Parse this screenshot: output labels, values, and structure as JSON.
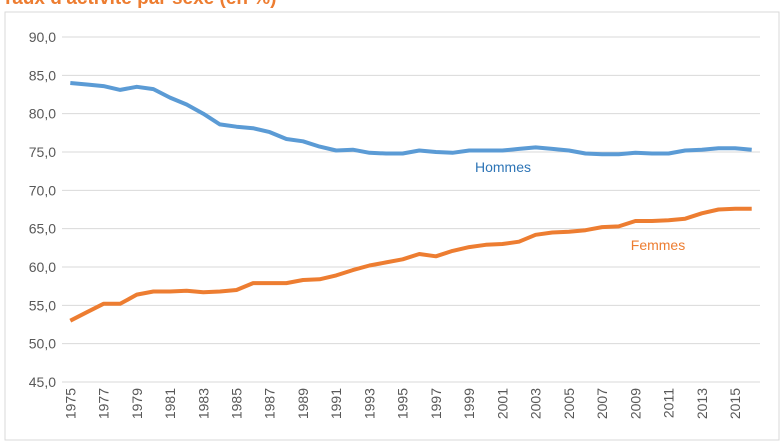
{
  "chart_data": {
    "type": "line",
    "title": "Taux d'activité par sexe (en %)",
    "title_color": "#ed7d31",
    "categories": [
      "1975",
      null,
      "1977",
      null,
      "1979",
      null,
      "1981",
      null,
      "1983",
      null,
      "1985",
      null,
      "1987",
      null,
      "1989",
      null,
      "1991",
      null,
      "1993",
      null,
      "1995",
      null,
      "1997",
      null,
      "1999",
      null,
      "2001",
      null,
      "2003",
      null,
      "2005",
      null,
      "2007",
      null,
      "2009",
      null,
      "2011",
      null,
      "2013",
      null,
      "2015",
      null
    ],
    "series": [
      {
        "name": "Hommes",
        "color": "#5b9bd5",
        "label_color": "#2e75b6",
        "values": [
          84.0,
          83.8,
          83.6,
          83.1,
          83.5,
          83.2,
          82.1,
          81.2,
          80.0,
          78.6,
          78.3,
          78.1,
          77.6,
          76.7,
          76.4,
          75.7,
          75.2,
          75.3,
          74.9,
          74.8,
          74.8,
          75.2,
          75.0,
          74.9,
          75.2,
          75.2,
          75.2,
          75.4,
          75.6,
          75.4,
          75.2,
          74.8,
          74.7,
          74.7,
          74.9,
          74.8,
          74.8,
          75.2,
          75.3,
          75.5,
          75.5,
          75.3
        ]
      },
      {
        "name": "Femmes",
        "color": "#ed7d31",
        "label_color": "#ed7d31",
        "values": [
          53.0,
          54.1,
          55.2,
          55.2,
          56.4,
          56.8,
          56.8,
          56.9,
          56.7,
          56.8,
          57.0,
          57.9,
          57.9,
          57.9,
          58.3,
          58.4,
          58.9,
          59.6,
          60.2,
          60.6,
          61.0,
          61.7,
          61.4,
          62.1,
          62.6,
          62.9,
          63.0,
          63.3,
          64.2,
          64.5,
          64.6,
          64.8,
          65.2,
          65.3,
          66.0,
          66.0,
          66.1,
          66.3,
          67.0,
          67.5,
          67.6,
          67.6
        ]
      }
    ],
    "ylim": [
      45,
      90
    ],
    "yticks": [
      {
        "value": 45,
        "label": "45,0"
      },
      {
        "value": 50,
        "label": "50,0"
      },
      {
        "value": 55,
        "label": "55,0"
      },
      {
        "value": 60,
        "label": "60,0"
      },
      {
        "value": 65,
        "label": "65,0"
      },
      {
        "value": 70,
        "label": "70,0"
      },
      {
        "value": 75,
        "label": "75,0"
      },
      {
        "value": 80,
        "label": "80,0"
      },
      {
        "value": 85,
        "label": "85,0"
      },
      {
        "value": 90,
        "label": "90,0"
      }
    ],
    "grid": true
  }
}
